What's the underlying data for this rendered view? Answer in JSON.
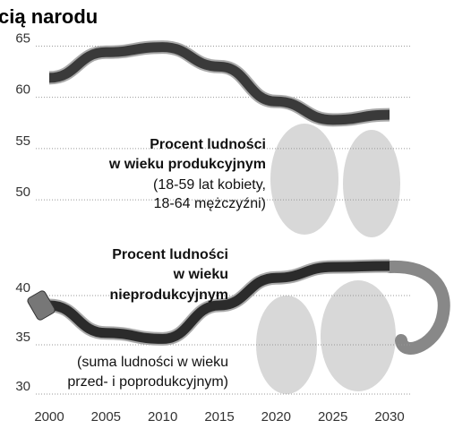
{
  "chart_data": [
    {
      "type": "line",
      "title": "cią narodu",
      "x": [
        2000,
        2005,
        2010,
        2015,
        2020,
        2025,
        2030
      ],
      "series": [
        {
          "color": "#3a3a3a",
          "values": [
            61.9,
            64.4,
            64.9,
            63,
            59.6,
            57.8,
            58.3
          ]
        }
      ],
      "ylim": [
        48,
        66
      ],
      "yticks": [
        50,
        55,
        60,
        65
      ],
      "grid": true,
      "annotations": [
        [
          "Procent ludności",
          "w wieku produkcyjnym"
        ],
        [
          "(18-59 lat kobiety,",
          "18-64 mężczyźni)"
        ]
      ]
    },
    {
      "type": "line",
      "x": [
        2000,
        2005,
        2010,
        2015,
        2020,
        2025,
        2030
      ],
      "series": [
        {
          "color": "#2b2b2b",
          "values": [
            39,
            36.2,
            35.6,
            39,
            41.8,
            42.9,
            43
          ]
        }
      ],
      "ylim": [
        30,
        45
      ],
      "yticks": [
        30,
        35,
        40
      ],
      "grid": true,
      "xticks": [
        2000,
        2005,
        2010,
        2015,
        2020,
        2025,
        2030
      ],
      "annotations": [
        [
          "Procent ludności",
          "w wieku",
          "nieprodukcyjnym"
        ],
        [
          "(suma ludności w wieku",
          "przed- i poprodukcyjnym)"
        ]
      ]
    }
  ]
}
